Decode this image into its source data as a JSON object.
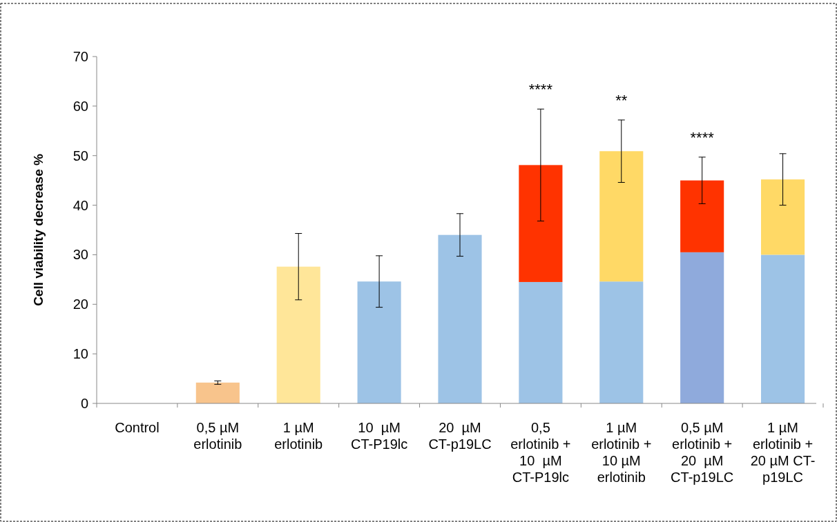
{
  "chart_data": {
    "type": "bar",
    "stacked": true,
    "ylabel": "Cell viability decrease %",
    "categories": [
      "Control",
      "0,5 µM\nerlotinib",
      "1 µM\nerlotinib",
      "10  µM\nCT-P19lc",
      "20  µM\nCT-p19LC",
      "0,5\nerlotinib +\n10  µM\nCT-P19lc",
      "1 µM\nerlotinib +\n10 µM\nerlotinib",
      "0,5 µM\nerlotinib +\n20  µM\nCT-p19LC",
      "1 µM\nerlotinib +\n20 µM CT-\np19LC"
    ],
    "series": [
      {
        "colors": [
          "#9dc3e6",
          "#9dc3e6",
          "#9dc3e6",
          "#9dc3e6",
          "#9dc3e6",
          "#9dc3e6",
          "#9dc3e6",
          "#8faadc",
          "#9dc3e6"
        ],
        "values": [
          0,
          0,
          0,
          24.6,
          34,
          24.5,
          24.6,
          30.5,
          30
        ],
        "errors": [
          null,
          null,
          null,
          5.2,
          4.3,
          null,
          null,
          null,
          null
        ]
      },
      {
        "colors": [
          "#f8cbad",
          "#f8c48c",
          "#ffe699",
          "#ffd966",
          "#ffd966",
          "#ff3300",
          "#ffd966",
          "#ff3300",
          "#ffd966"
        ],
        "values": [
          0,
          4.2,
          27.6,
          0,
          0,
          23.6,
          26.3,
          14.5,
          15.2
        ],
        "errors": [
          null,
          0.35,
          6.7,
          null,
          null,
          11.3,
          6.3,
          4.7,
          5.2
        ]
      }
    ],
    "ylim": [
      0,
      70
    ],
    "yticks": [
      0,
      10,
      20,
      30,
      40,
      50,
      60,
      70
    ],
    "grid": false,
    "annotations": [
      "****",
      "**",
      "****"
    ]
  }
}
